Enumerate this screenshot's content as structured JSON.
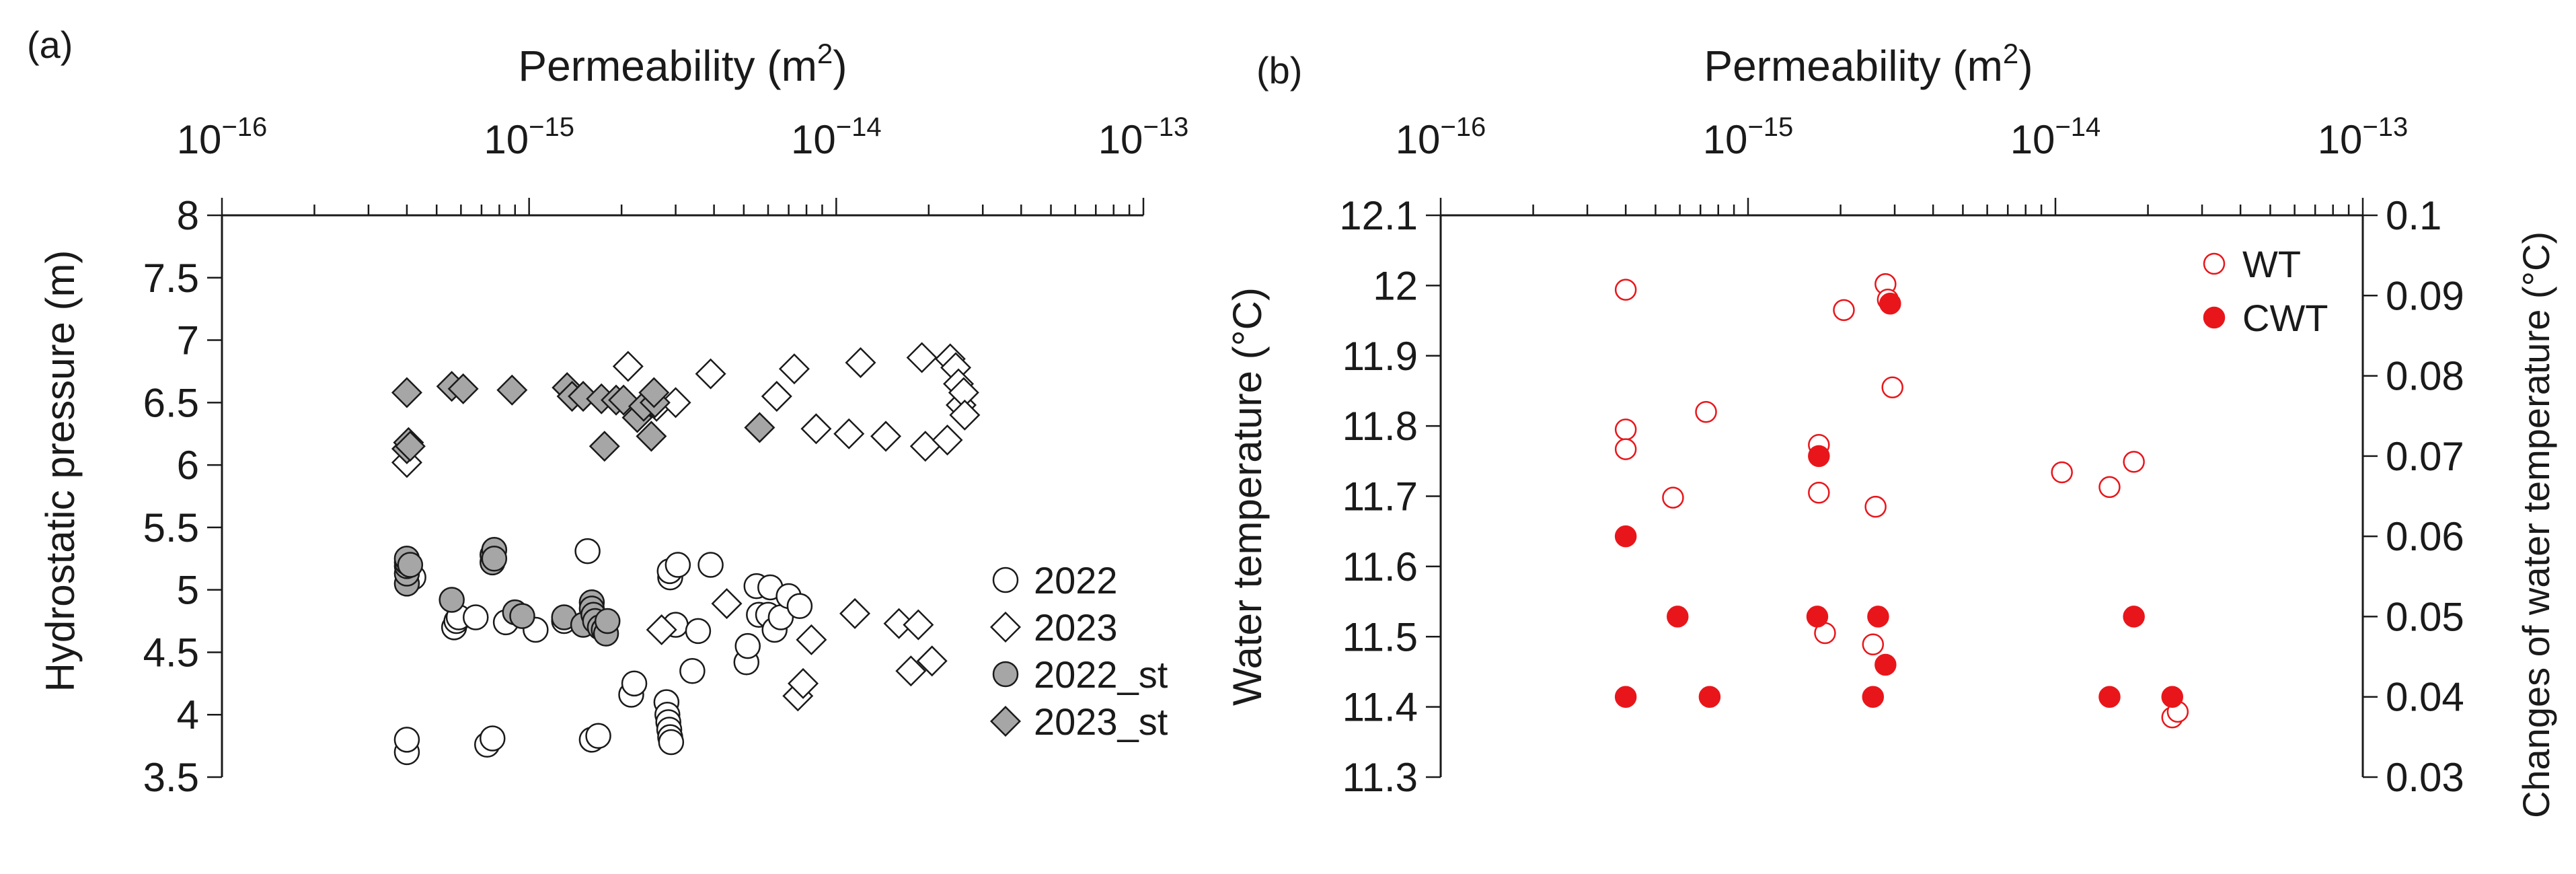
{
  "chart_data": [
    {
      "panel": "(a)",
      "type": "scatter",
      "xlabel": "Permeability (m²)",
      "xlabel_text": "Permeability (m",
      "xlabel_sup": "2",
      "xlabel_close": ")",
      "ylabel": "Hydrostatic pressure (m)",
      "x_scale": "log",
      "xlim": [
        1e-16,
        1e-13
      ],
      "ylim": [
        3.5,
        8
      ],
      "x_ticks": [
        {
          "value": 1e-16,
          "base": "10",
          "exp": "−16"
        },
        {
          "value": 1e-15,
          "base": "10",
          "exp": "−15"
        },
        {
          "value": 1e-14,
          "base": "10",
          "exp": "−14"
        },
        {
          "value": 1e-13,
          "base": "10",
          "exp": "−13"
        }
      ],
      "y_ticks": [
        "3.5",
        "4",
        "4.5",
        "5",
        "5.5",
        "6",
        "6.5",
        "7",
        "7.5",
        "8"
      ],
      "x_axis_position": "top",
      "grid": false,
      "legend_position": "right",
      "series": [
        {
          "name": "2022",
          "marker": "circle",
          "fill": "#ffffff",
          "stroke": "#1a1a1a",
          "x": [
            4e-16,
            4e-16,
            4.2e-16,
            5.7e-16,
            5.8e-16,
            5.9e-16,
            6.7e-16,
            7.3e-16,
            7.6e-16,
            8.4e-16,
            1.05e-15,
            1.3e-15,
            1.55e-15,
            1.6e-15,
            1.68e-15,
            2.15e-15,
            2.2e-15,
            2.8e-15,
            2.82e-15,
            2.84e-15,
            2.86e-15,
            2.88e-15,
            2.9e-15,
            2.88e-15,
            2.87e-15,
            3e-15,
            3.05e-15,
            3.4e-15,
            3.55e-15,
            3.9e-15,
            5.1e-15,
            5.15e-15,
            5.5e-15,
            5.6e-15,
            6e-15,
            6.1e-15,
            6.3e-15,
            6.6e-15,
            7e-15,
            7.6e-15
          ],
          "y": [
            3.7,
            3.8,
            5.1,
            4.7,
            4.75,
            4.78,
            4.78,
            3.76,
            3.81,
            4.74,
            4.68,
            4.75,
            5.31,
            3.8,
            3.83,
            4.16,
            4.25,
            4.1,
            4.0,
            3.94,
            3.88,
            3.82,
            3.78,
            5.1,
            5.15,
            4.72,
            5.2,
            4.35,
            4.67,
            5.2,
            4.42,
            4.55,
            5.03,
            4.8,
            4.8,
            5.02,
            4.68,
            4.78,
            4.95,
            4.87
          ]
        },
        {
          "name": "2023",
          "marker": "diamond",
          "fill": "#ffffff",
          "stroke": "#1a1a1a",
          "x": [
            4e-16,
            2.1e-15,
            2.6e-15,
            2.7e-15,
            3e-15,
            3.9e-15,
            4.4e-15,
            6.4e-15,
            7.3e-15,
            7.5e-15,
            7.8e-15,
            8.3e-15,
            8.6e-15,
            1.1e-14,
            1.15e-14,
            1.2e-14,
            1.45e-14,
            1.6e-14,
            1.75e-14,
            1.85e-14,
            1.9e-14,
            1.95e-14,
            2.05e-14,
            2.3e-14,
            2.35e-14,
            2.45e-14,
            2.5e-14,
            2.55e-14,
            2.6e-14,
            2.62e-14
          ],
          "y": [
            6.02,
            6.79,
            6.47,
            4.68,
            6.5,
            6.73,
            4.89,
            6.55,
            6.77,
            4.15,
            4.25,
            4.6,
            6.29,
            6.25,
            4.81,
            6.82,
            6.23,
            4.73,
            4.35,
            4.72,
            6.86,
            6.15,
            4.43,
            6.2,
            6.85,
            6.78,
            6.65,
            6.48,
            6.58,
            6.4
          ]
        },
        {
          "name": "2022_st",
          "marker": "circle",
          "fill": "#a6a6a6",
          "stroke": "#1a1a1a",
          "x": [
            4e-16,
            4e-16,
            4e-16,
            4e-16,
            4e-16,
            4.1e-16,
            5.6e-16,
            7.6e-16,
            7.6e-16,
            7.7e-16,
            7.7e-16,
            9e-16,
            9.5e-16,
            1.3e-15,
            1.5e-15,
            1.6e-15,
            1.6e-15,
            1.62e-15,
            1.64e-15,
            1.7e-15,
            1.75e-15,
            1.78e-15,
            1.8e-15
          ],
          "y": [
            5.05,
            5.13,
            5.19,
            5.22,
            5.25,
            5.2,
            4.92,
            5.22,
            5.28,
            5.32,
            5.25,
            4.82,
            4.79,
            4.78,
            4.72,
            4.9,
            4.85,
            4.8,
            4.75,
            4.7,
            4.68,
            4.65,
            4.75
          ]
        },
        {
          "name": "2023_st",
          "marker": "diamond",
          "fill": "#a6a6a6",
          "stroke": "#1a1a1a",
          "x": [
            4e-16,
            4e-16,
            4.05e-16,
            4.1e-16,
            5.6e-16,
            6.1e-16,
            8.8e-16,
            1.33e-15,
            1.38e-15,
            1.5e-15,
            1.72e-15,
            1.76e-15,
            1.92e-15,
            2.03e-15,
            2.25e-15,
            2.36e-15,
            2.5e-15,
            2.57e-15,
            2.55e-15,
            5.63e-15
          ],
          "y": [
            6.58,
            6.13,
            6.18,
            6.15,
            6.63,
            6.61,
            6.6,
            6.62,
            6.55,
            6.55,
            6.53,
            6.15,
            6.52,
            6.52,
            6.38,
            6.47,
            6.23,
            6.5,
            6.58,
            6.3
          ]
        }
      ]
    },
    {
      "panel": "(b)",
      "type": "scatter",
      "xlabel": "Permeability (m²)",
      "xlabel_text": "Permeability (m",
      "xlabel_sup": "2",
      "xlabel_close": ")",
      "ylabel": "Water temperature  (°C)",
      "y2label": "Changes of water temperature  (°C)",
      "x_scale": "log",
      "xlim": [
        1e-16,
        1e-13
      ],
      "ylim": [
        11.3,
        12.1
      ],
      "y2lim": [
        0.03,
        0.1
      ],
      "x_ticks": [
        {
          "value": 1e-16,
          "base": "10",
          "exp": "−16"
        },
        {
          "value": 1e-15,
          "base": "10",
          "exp": "−15"
        },
        {
          "value": 1e-14,
          "base": "10",
          "exp": "−14"
        },
        {
          "value": 1e-13,
          "base": "10",
          "exp": "−13"
        }
      ],
      "y_ticks": [
        "11.3",
        "11.4",
        "11.5",
        "11.6",
        "11.7",
        "11.8",
        "11.9",
        "12",
        "12.1"
      ],
      "y2_ticks": [
        "0.03",
        "0.04",
        "0.05",
        "0.06",
        "0.07",
        "0.08",
        "0.09",
        "0.1"
      ],
      "x_axis_position": "top",
      "grid": false,
      "legend_position": "top-right",
      "series": [
        {
          "name": "WT",
          "axis": "left",
          "marker": "circle",
          "fill": "#ffffff",
          "stroke": "#e8161b",
          "x": [
            4e-16,
            4e-16,
            4e-16,
            5.7e-16,
            7.3e-16,
            1.7e-15,
            1.7e-15,
            1.78e-15,
            2.05e-15,
            2.55e-15,
            2.6e-15,
            2.8e-15,
            2.85e-15,
            2.95e-15,
            1.05e-14,
            1.5e-14,
            1.8e-14,
            2.4e-14,
            2.5e-14
          ],
          "y": [
            11.994,
            11.795,
            11.767,
            11.698,
            11.82,
            11.773,
            11.705,
            11.505,
            11.965,
            11.489,
            11.685,
            12.002,
            11.98,
            11.855,
            11.734,
            11.713,
            11.749,
            11.385,
            11.393
          ]
        },
        {
          "name": "CWT",
          "axis": "right",
          "marker": "circle",
          "fill": "#e8161b",
          "stroke": "#e8161b",
          "x": [
            4e-16,
            4e-16,
            5.9e-16,
            7.5e-16,
            1.68e-15,
            1.7e-15,
            2.55e-15,
            2.65e-15,
            2.8e-15,
            2.9e-15,
            1.5e-14,
            1.8e-14,
            2.4e-14
          ],
          "y": [
            0.06,
            0.04,
            0.05,
            0.04,
            0.05,
            0.07,
            0.04,
            0.05,
            0.044,
            0.089,
            0.04,
            0.05,
            0.04
          ]
        }
      ]
    }
  ]
}
